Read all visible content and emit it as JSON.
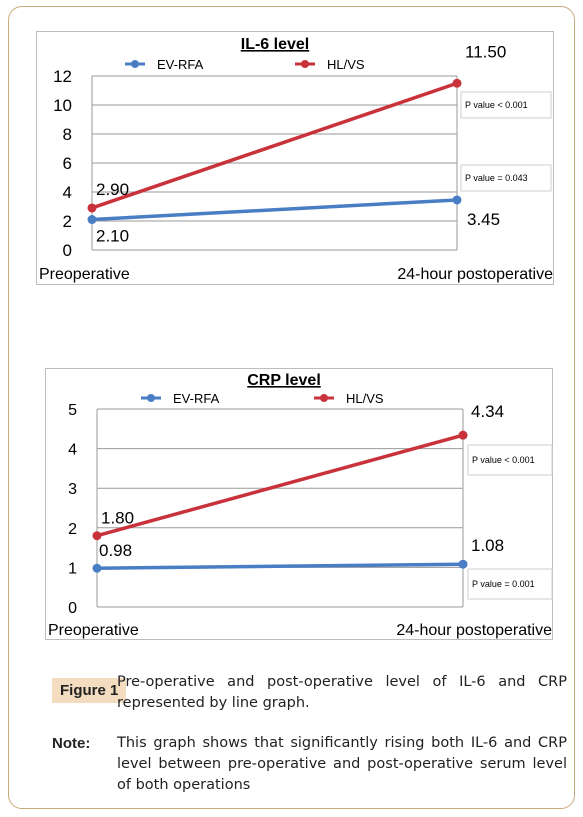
{
  "chart_data": [
    {
      "type": "line",
      "title": "IL-6 level",
      "categories": [
        "Preoperative",
        "24-hour postoperative"
      ],
      "ylim": [
        0,
        12
      ],
      "yticks": [
        "0",
        "2",
        "4",
        "6",
        "8",
        "10",
        "12"
      ],
      "grid": true,
      "legend": "top",
      "series": [
        {
          "name": "EV-RFA",
          "values": [
            2.1,
            3.45
          ],
          "labels": [
            "2.10",
            "3.45"
          ],
          "color": "#4a7ec4"
        },
        {
          "name": "HL/VS",
          "values": [
            2.9,
            11.5
          ],
          "labels": [
            "2.90",
            "11.50"
          ],
          "color": "#c9323a"
        }
      ],
      "annotations": [
        "P value < 0.001",
        "P value = 0.043"
      ]
    },
    {
      "type": "line",
      "title": "CRP level",
      "categories": [
        "Preoperative",
        "24-hour postoperative"
      ],
      "ylim": [
        0,
        5
      ],
      "yticks": [
        "0",
        "1",
        "2",
        "3",
        "4",
        "5"
      ],
      "grid": true,
      "legend": "top",
      "series": [
        {
          "name": "EV-RFA",
          "values": [
            0.98,
            1.08
          ],
          "labels": [
            "0.98",
            "1.08"
          ],
          "color": "#4a7ec4"
        },
        {
          "name": "HL/VS",
          "values": [
            1.8,
            4.34
          ],
          "labels": [
            "1.80",
            "4.34"
          ],
          "color": "#c9323a"
        }
      ],
      "annotations": [
        "P value < 0.001",
        "P value = 0.001"
      ]
    }
  ],
  "caption": {
    "label": "Figure 1",
    "text": "Pre-operative and post-operative level of IL-6 and CRP represented by line graph.",
    "note_label": "Note:",
    "note_text": "This graph shows that significantly rising both IL-6 and CRP level between pre-operative and post-operative serum level of both operations"
  }
}
